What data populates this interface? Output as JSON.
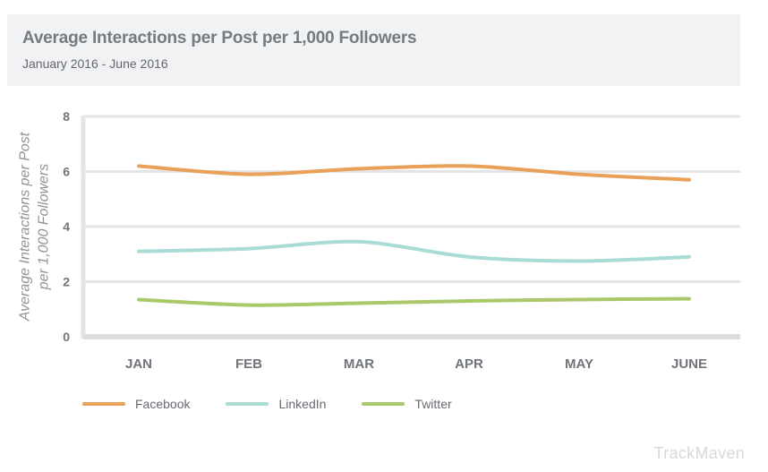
{
  "header": {
    "title": "Average Interactions per Post per 1,000 Followers",
    "subtitle": "January 2016 - June 2016"
  },
  "chart_data": {
    "type": "line",
    "title": "Average Interactions per Post per 1,000 Followers",
    "subtitle": "January 2016 - June 2016",
    "xlabel": "",
    "ylabel_lines": [
      "Average Interactions per Post",
      "per 1,000 Followers"
    ],
    "categories": [
      "JAN",
      "FEB",
      "MAR",
      "APR",
      "MAY",
      "JUNE"
    ],
    "ylim": [
      0,
      8
    ],
    "yticks": [
      0,
      2,
      4,
      6,
      8
    ],
    "grid": true,
    "legend_position": "bottom-left",
    "series": [
      {
        "name": "Facebook",
        "color": "#e9a15a",
        "values": [
          6.2,
          5.9,
          6.1,
          6.2,
          5.9,
          5.7
        ]
      },
      {
        "name": "LinkedIn",
        "color": "#a8dcd5",
        "values": [
          3.1,
          3.2,
          3.45,
          2.9,
          2.75,
          2.9
        ]
      },
      {
        "name": "Twitter",
        "color": "#a8c86a",
        "values": [
          1.35,
          1.15,
          1.22,
          1.3,
          1.35,
          1.38
        ]
      }
    ]
  },
  "brand": {
    "name": "TrackMaven"
  }
}
